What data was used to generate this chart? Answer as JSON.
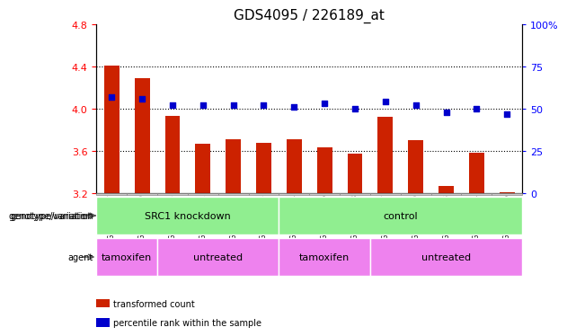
{
  "title": "GDS4095 / 226189_at",
  "samples": [
    "GSM709767",
    "GSM709769",
    "GSM709765",
    "GSM709771",
    "GSM709772",
    "GSM709775",
    "GSM709764",
    "GSM709766",
    "GSM709768",
    "GSM709777",
    "GSM709770",
    "GSM709773",
    "GSM709774",
    "GSM709776"
  ],
  "bar_values": [
    4.41,
    4.29,
    3.93,
    3.67,
    3.71,
    3.68,
    3.71,
    3.63,
    3.57,
    3.92,
    3.7,
    3.27,
    3.58,
    3.21
  ],
  "dot_values": [
    57,
    56,
    52,
    52,
    52,
    52,
    51,
    53,
    50,
    54,
    52,
    48,
    50,
    47
  ],
  "bar_base": 3.2,
  "ylim_left": [
    3.2,
    4.8
  ],
  "ylim_right": [
    0,
    100
  ],
  "yticks_left": [
    3.2,
    3.6,
    4.0,
    4.4,
    4.8
  ],
  "yticks_right": [
    0,
    25,
    50,
    75,
    100
  ],
  "ytick_labels_right": [
    "0",
    "25",
    "50",
    "75",
    "100%"
  ],
  "hlines": [
    3.6,
    4.0,
    4.4
  ],
  "bar_color": "#cc2200",
  "dot_color": "#0000cc",
  "genotype_groups": [
    {
      "label": "SRC1 knockdown",
      "span": [
        0,
        6
      ]
    },
    {
      "label": "control",
      "span": [
        6,
        14
      ]
    }
  ],
  "agent_segments": [
    {
      "label": "tamoxifen",
      "start": 0,
      "end": 2
    },
    {
      "label": "untreated",
      "start": 2,
      "end": 6
    },
    {
      "label": "tamoxifen",
      "start": 6,
      "end": 9
    },
    {
      "label": "untreated",
      "start": 9,
      "end": 14
    }
  ],
  "genotype_color": "#90ee90",
  "agent_color": "#ee82ee",
  "title_fontsize": 11,
  "tick_fontsize": 8,
  "sample_fontsize": 6,
  "legend_labels": [
    "transformed count",
    "percentile rank within the sample"
  ],
  "legend_colors": [
    "#cc2200",
    "#0000cc"
  ]
}
